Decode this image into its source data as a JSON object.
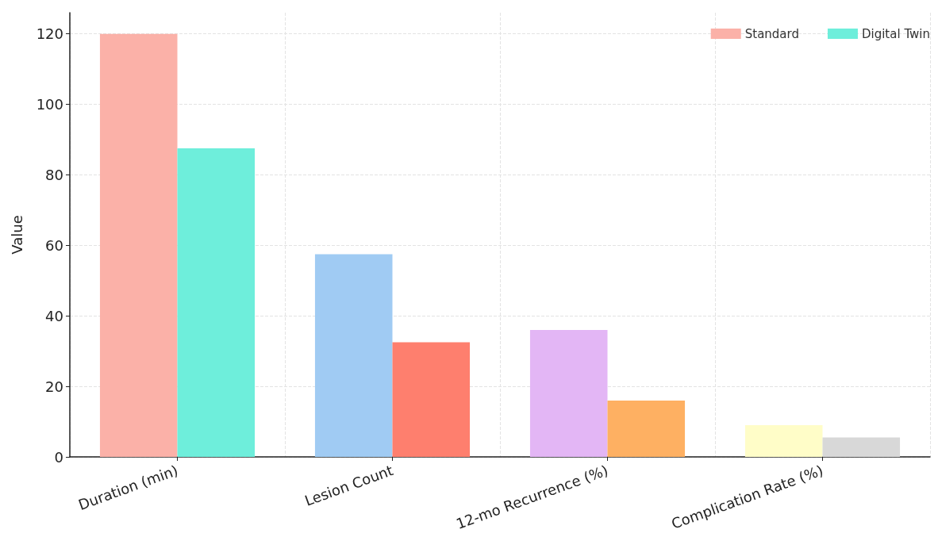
{
  "chart_data": {
    "type": "bar",
    "categories": [
      "Duration (min)",
      "Lesion Count",
      "12-mo Recurrence (%)",
      "Complication Rate (%)"
    ],
    "ylabel": "Value",
    "series": [
      {
        "name": "Standard",
        "color": "#fbb1a8",
        "colors": [
          "#fbb1a8",
          "#a0cbf3",
          "#e3b6f5",
          "#fffdc8"
        ],
        "values": [
          120,
          57.5,
          36,
          9
        ]
      },
      {
        "name": "Digital Twin",
        "color": "#6eeedb",
        "colors": [
          "#6eeedb",
          "#fe7f6e",
          "#feb062",
          "#d8d8d8"
        ],
        "values": [
          87.5,
          32.5,
          16,
          5.5
        ]
      }
    ],
    "ylim": [
      0,
      126
    ],
    "yticks": [
      0,
      20,
      40,
      60,
      80,
      100,
      120
    ],
    "grid": true,
    "legend": "top right"
  }
}
